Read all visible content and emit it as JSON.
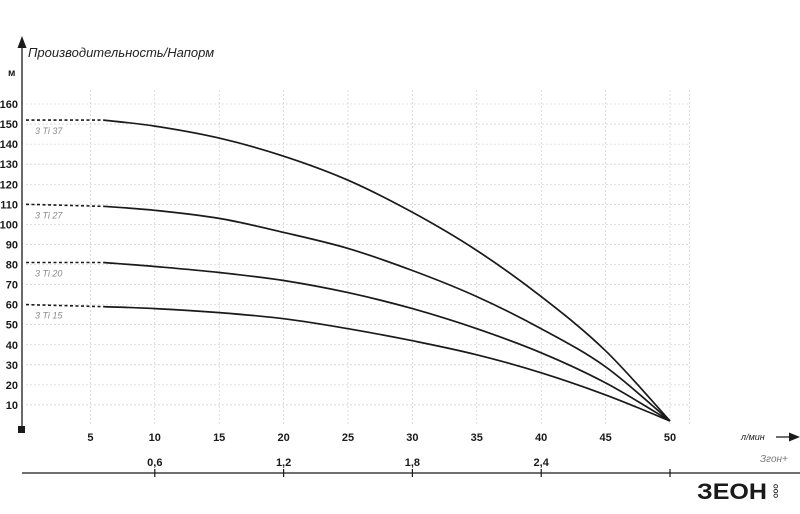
{
  "chart_data": {
    "type": "line",
    "title": "Производительность/Напорм",
    "ylabel": "м",
    "xlabel": "л/мин",
    "ylim": [
      0,
      160
    ],
    "xlim": [
      0,
      50
    ],
    "yticks": [
      "10",
      "20",
      "30",
      "40",
      "50",
      "60",
      "70",
      "80",
      "90",
      "100",
      "110",
      "120",
      "130",
      "140",
      "150",
      "160"
    ],
    "xticks": [
      "5",
      "10",
      "15",
      "20",
      "25",
      "30",
      "35",
      "40",
      "45",
      "50"
    ],
    "secondary_axis": {
      "ticks": [
        {
          "x": 10,
          "label": "0,6"
        },
        {
          "x": 20,
          "label": "1,2"
        },
        {
          "x": 30,
          "label": "1,8"
        },
        {
          "x": 40,
          "label": "2,4"
        }
      ]
    },
    "grid": true,
    "series": [
      {
        "name": "3 Ti 37",
        "shutoff_head": 152,
        "dashed_until_x": 6,
        "end_x": 50,
        "points": [
          [
            6,
            152
          ],
          [
            10,
            149
          ],
          [
            15,
            143
          ],
          [
            20,
            134
          ],
          [
            25,
            122
          ],
          [
            30,
            106
          ],
          [
            35,
            87
          ],
          [
            40,
            64
          ],
          [
            45,
            37
          ],
          [
            50,
            2
          ]
        ]
      },
      {
        "name": "3 Ti 27",
        "shutoff_head": 110,
        "dashed_until_x": 6,
        "end_x": 50,
        "points": [
          [
            6,
            109
          ],
          [
            10,
            107
          ],
          [
            15,
            103
          ],
          [
            20,
            96
          ],
          [
            25,
            88
          ],
          [
            30,
            77
          ],
          [
            35,
            64
          ],
          [
            40,
            48
          ],
          [
            45,
            29
          ],
          [
            50,
            2
          ]
        ]
      },
      {
        "name": "3 Ti 20",
        "shutoff_head": 81,
        "dashed_until_x": 6,
        "end_x": 50,
        "points": [
          [
            6,
            81
          ],
          [
            10,
            79
          ],
          [
            15,
            76
          ],
          [
            20,
            72
          ],
          [
            25,
            66
          ],
          [
            30,
            58
          ],
          [
            35,
            48
          ],
          [
            40,
            36
          ],
          [
            45,
            21
          ],
          [
            50,
            2
          ]
        ]
      },
      {
        "name": "3 Ti 15",
        "shutoff_head": 60,
        "dashed_until_x": 6,
        "end_x": 50,
        "points": [
          [
            6,
            59
          ],
          [
            10,
            58
          ],
          [
            15,
            56
          ],
          [
            20,
            53
          ],
          [
            25,
            48
          ],
          [
            30,
            42
          ],
          [
            35,
            35
          ],
          [
            40,
            26
          ],
          [
            45,
            15
          ],
          [
            50,
            2
          ]
        ]
      }
    ]
  },
  "brand": {
    "caption": "Згон+",
    "logo_text": "ЗЕОН",
    "logo_suffix": "ООО"
  }
}
